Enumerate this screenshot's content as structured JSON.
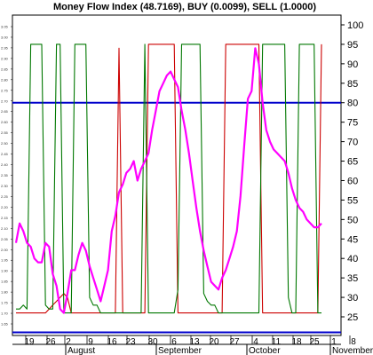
{
  "chart_data": {
    "type": "line",
    "title": "Money Flow Index (48.7169), BUY (0.0099), SELL (1.0000)",
    "xlabel": "",
    "ylabel": "",
    "ylim": [
      20,
      100
    ],
    "right_axis_ticks": [
      "25",
      "30",
      "35",
      "40",
      "45",
      "50",
      "55",
      "60",
      "65",
      "70",
      "75",
      "80",
      "85",
      "90",
      "95",
      "100"
    ],
    "left_axis_ticks": [
      "3.05",
      "3.00",
      "2.95",
      "2.90",
      "2.85",
      "2.80",
      "2.75",
      "2.70",
      "2.65",
      "2.60",
      "2.55",
      "2.50",
      "2.45",
      "2.40",
      "2.35",
      "2.30",
      "2.25",
      "2.20",
      "2.15",
      "2.10",
      "2.05",
      "2.00",
      "1.95",
      "1.90",
      "1.85",
      "1.80",
      "1.75",
      "1.70",
      "1.65"
    ],
    "x_ticks": [
      "19",
      "26",
      "2",
      "9",
      "16",
      "23",
      "30",
      "6",
      "13",
      "20",
      "27",
      "4",
      "11",
      "18",
      "25",
      "1",
      "8"
    ],
    "months": [
      "August",
      "September",
      "October",
      "November"
    ],
    "grid": false,
    "reference_lines": [
      {
        "value": 80,
        "color": "#0000cc"
      },
      {
        "value": 21,
        "color": "#0000cc"
      }
    ],
    "series": [
      {
        "color": "#ff00ff",
        "x": [
          0,
          1,
          2,
          3,
          4,
          5,
          6,
          7,
          8,
          9,
          10,
          11,
          12,
          13,
          14,
          15,
          16,
          17,
          18,
          19,
          20,
          21,
          22,
          23,
          24,
          25,
          26,
          27,
          28,
          29,
          30,
          31,
          32,
          33,
          34,
          35,
          36,
          37,
          38,
          39,
          40,
          41,
          42,
          43,
          44,
          45,
          46,
          47,
          48,
          49,
          50,
          51,
          52,
          53,
          54,
          55,
          56,
          57,
          58,
          59,
          60,
          61,
          62,
          63,
          64,
          65,
          66,
          67,
          68,
          69,
          70,
          71,
          72,
          73,
          74,
          75,
          76,
          77,
          78,
          79,
          80,
          81,
          82,
          83
        ],
        "values": [
          44,
          49,
          47,
          44,
          43,
          40,
          39,
          39,
          44,
          43,
          36,
          33,
          27,
          26,
          31,
          37,
          37,
          41,
          44,
          42,
          38,
          35,
          32,
          29,
          33,
          37,
          47,
          51,
          57,
          59,
          62,
          63,
          65,
          60,
          63,
          65,
          67,
          73,
          78,
          83,
          85,
          87,
          88,
          86,
          84,
          78,
          73,
          67,
          60,
          53,
          47,
          42,
          38,
          34,
          33,
          32,
          35,
          37,
          40,
          43,
          47,
          56,
          69,
          81,
          83,
          94,
          90,
          80,
          73,
          70,
          68,
          67,
          66,
          65,
          62,
          58,
          55,
          53,
          52,
          50,
          49,
          48,
          48,
          49
        ]
      },
      {
        "color": "#cc0000",
        "x": [
          0,
          1,
          2,
          3,
          4,
          5,
          6,
          7,
          8,
          9,
          10,
          11,
          12,
          13,
          14,
          15,
          16,
          17,
          18,
          19,
          20,
          21,
          22,
          23,
          24,
          25,
          26,
          27,
          28,
          29,
          30,
          31,
          32,
          33,
          34,
          35,
          36,
          37,
          38,
          39,
          40,
          41,
          42,
          43,
          44,
          45,
          46,
          47,
          48,
          49,
          50,
          51,
          52,
          53,
          54,
          55,
          56,
          57,
          58,
          59,
          60,
          61,
          62,
          63,
          64,
          65,
          66,
          67,
          68,
          69,
          70,
          71,
          72,
          73,
          74,
          75,
          76,
          77,
          78,
          79,
          80,
          81,
          82,
          83
        ],
        "values": [
          26,
          26,
          26,
          26,
          26,
          26,
          26,
          26,
          26,
          27,
          28,
          29,
          30,
          31,
          30,
          26,
          26,
          26,
          26,
          26,
          26,
          26,
          26,
          26,
          26,
          26,
          26,
          26,
          94,
          26,
          26,
          26,
          26,
          26,
          26,
          26,
          95,
          95,
          95,
          95,
          95,
          95,
          95,
          95,
          26,
          26,
          26,
          26,
          26,
          26,
          26,
          26,
          26,
          26,
          26,
          26,
          26,
          95,
          95,
          95,
          95,
          95,
          95,
          95,
          95,
          95,
          95,
          26,
          26,
          26,
          26,
          26,
          26,
          26,
          26,
          26,
          26,
          26,
          26,
          26,
          26,
          26,
          26,
          95
        ]
      },
      {
        "color": "#007700",
        "x": [
          0,
          1,
          2,
          3,
          4,
          5,
          6,
          7,
          8,
          9,
          10,
          11,
          12,
          13,
          14,
          15,
          16,
          17,
          18,
          19,
          20,
          21,
          22,
          23,
          24,
          25,
          26,
          27,
          28,
          29,
          30,
          31,
          32,
          33,
          34,
          35,
          36,
          37,
          38,
          39,
          40,
          41,
          42,
          43,
          44,
          45,
          46,
          47,
          48,
          49,
          50,
          51,
          52,
          53,
          54,
          55,
          56,
          57,
          58,
          59,
          60,
          61,
          62,
          63,
          64,
          65,
          66,
          67,
          68,
          69,
          70,
          71,
          72,
          73,
          74,
          75,
          76,
          77,
          78,
          79,
          80,
          81,
          82,
          83
        ],
        "values": [
          27,
          27,
          28,
          27,
          95,
          95,
          95,
          95,
          28,
          27,
          27,
          95,
          95,
          26,
          26,
          26,
          95,
          95,
          95,
          95,
          30,
          28,
          28,
          26,
          26,
          26,
          26,
          26,
          26,
          26,
          26,
          26,
          26,
          26,
          26,
          95,
          26,
          26,
          26,
          26,
          26,
          26,
          26,
          26,
          32,
          95,
          95,
          95,
          95,
          95,
          95,
          31,
          29,
          28,
          28,
          26,
          26,
          26,
          26,
          26,
          26,
          26,
          26,
          26,
          26,
          26,
          26,
          95,
          95,
          95,
          95,
          95,
          95,
          95,
          30,
          26,
          26,
          95,
          95,
          95,
          95,
          95,
          26,
          26
        ]
      }
    ]
  }
}
